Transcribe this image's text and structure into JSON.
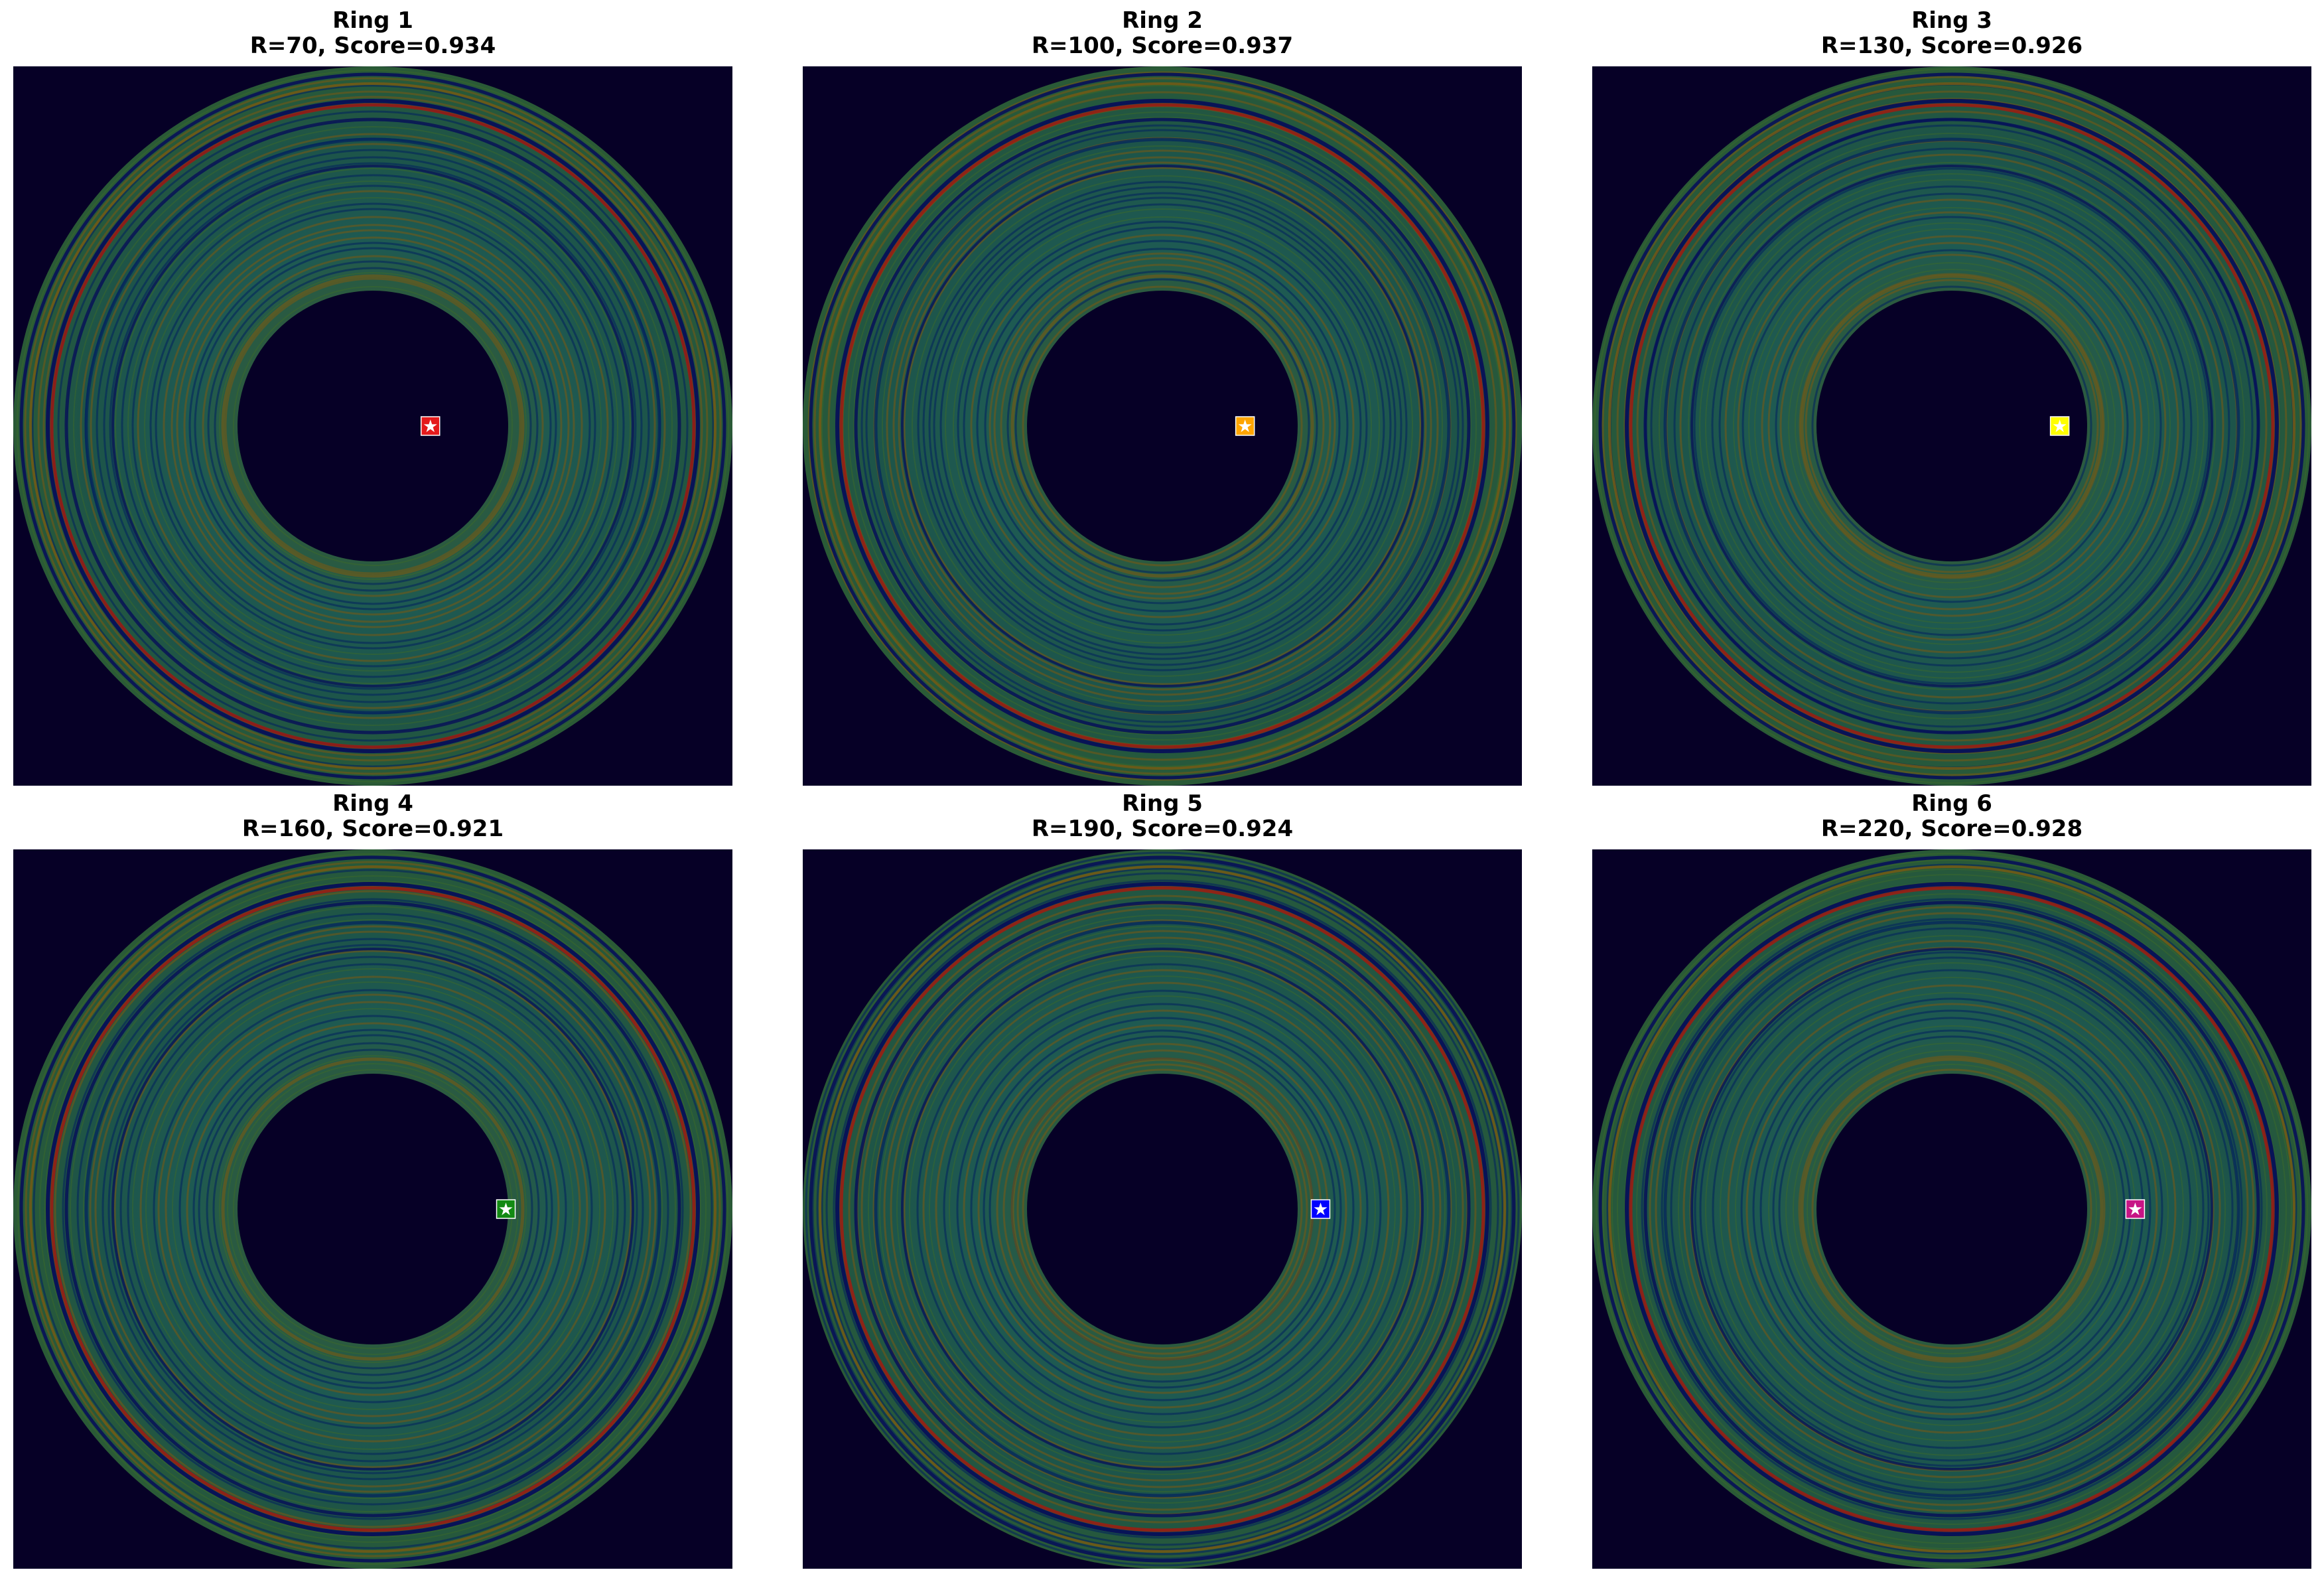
{
  "chart_data": [
    {
      "type": "heatmap",
      "title_line1": "Ring 1",
      "title_line2": "R=70, Score=0.934",
      "ring": 1,
      "R": 70,
      "score": 0.934,
      "marker_color": "#e41a1c",
      "marker_offset": [
        0.08,
        0.0
      ]
    },
    {
      "type": "heatmap",
      "title_line1": "Ring 2",
      "title_line2": "R=100, Score=0.937",
      "ring": 2,
      "R": 100,
      "score": 0.937,
      "marker_color": "#ffa500",
      "marker_offset": [
        0.115,
        0.0
      ]
    },
    {
      "type": "heatmap",
      "title_line1": "Ring 3",
      "title_line2": "R=130, Score=0.926",
      "ring": 3,
      "R": 130,
      "score": 0.926,
      "marker_color": "#ffff00",
      "marker_offset": [
        0.15,
        0.0
      ]
    },
    {
      "type": "heatmap",
      "title_line1": "Ring 4",
      "title_line2": "R=160, Score=0.921",
      "ring": 4,
      "R": 160,
      "score": 0.921,
      "marker_color": "#138a13",
      "marker_offset": [
        0.185,
        0.0
      ]
    },
    {
      "type": "heatmap",
      "title_line1": "Ring 5",
      "title_line2": "R=190, Score=0.924",
      "ring": 5,
      "R": 190,
      "score": 0.924,
      "marker_color": "#0000ff",
      "marker_offset": [
        0.22,
        0.0
      ]
    },
    {
      "type": "heatmap",
      "title_line1": "Ring 6",
      "title_line2": "R=220, Score=0.928",
      "ring": 6,
      "R": 220,
      "score": 0.928,
      "marker_color": "#c71585",
      "marker_offset": [
        0.255,
        0.0
      ]
    }
  ],
  "colors": {
    "background": "#060026",
    "ring_base": "#1d5a4e",
    "ring_orange": "#7a5a12",
    "ring_blue": "#04255e",
    "ring_red": "#a01a10",
    "ring_dark_blue": "#050c5a"
  }
}
